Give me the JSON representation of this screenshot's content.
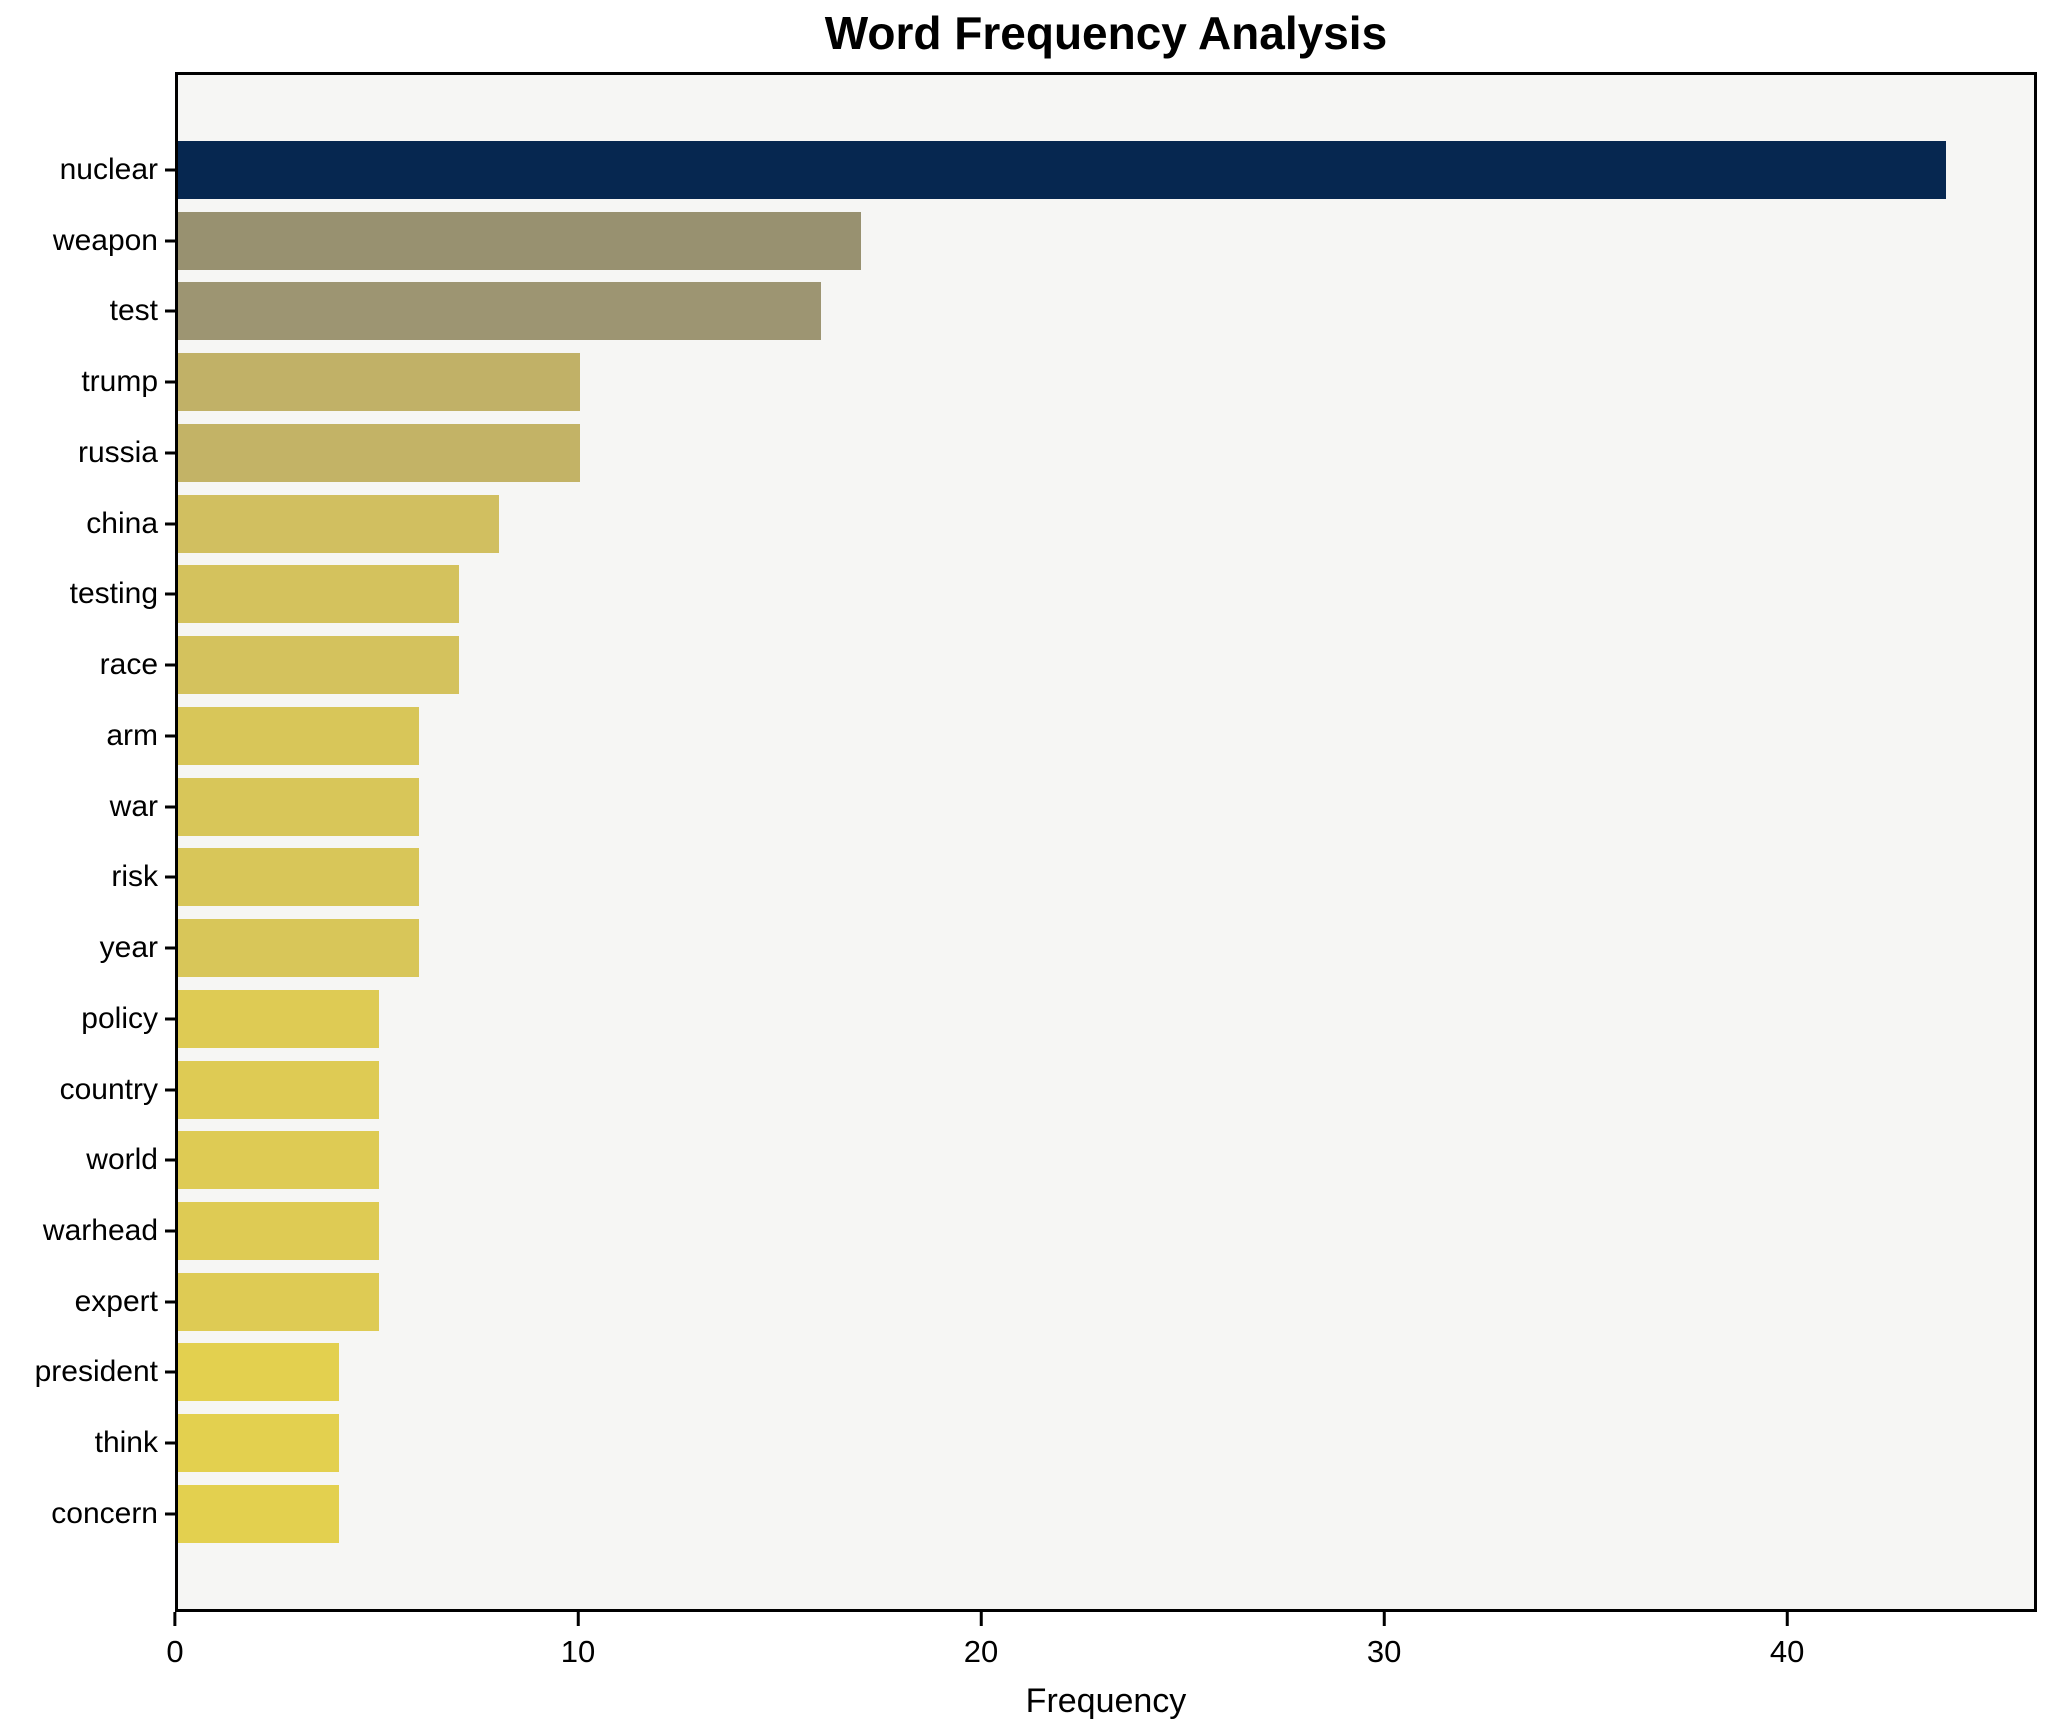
{
  "chart_data": {
    "type": "bar",
    "orientation": "horizontal",
    "title": "Word Frequency Analysis",
    "xlabel": "Frequency",
    "ylabel": "",
    "xlim": [
      0,
      46.2
    ],
    "xticks": [
      0,
      10,
      20,
      30,
      40
    ],
    "grid": false,
    "legend": null,
    "plot_background": "#f6f6f4",
    "axis_color": "#000000",
    "categories": [
      "nuclear",
      "weapon",
      "test",
      "trump",
      "russia",
      "china",
      "testing",
      "race",
      "arm",
      "war",
      "risk",
      "year",
      "policy",
      "country",
      "world",
      "warhead",
      "expert",
      "president",
      "think",
      "concern"
    ],
    "values": [
      44,
      17,
      16,
      10,
      10,
      8,
      7,
      7,
      6,
      6,
      6,
      6,
      5,
      5,
      5,
      5,
      5,
      4,
      4,
      4
    ],
    "bar_colors": [
      "#062750",
      "#989170",
      "#9d9572",
      "#c1b167",
      "#c3b366",
      "#d1bf60",
      "#d4c25d",
      "#d4c25d",
      "#d8c659",
      "#d8c659",
      "#d8c659",
      "#d8c659",
      "#decb54",
      "#decb54",
      "#decb54",
      "#decb54",
      "#decb54",
      "#e3d04f",
      "#e3d04f",
      "#e3d04f"
    ]
  }
}
